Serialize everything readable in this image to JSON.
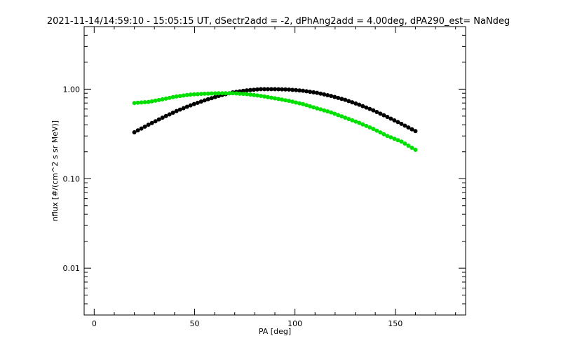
{
  "chart_data": {
    "type": "scatter",
    "title": "2021-11-14/14:59:10 - 15:05:15 UT, dSectr2add = -2, dPhAng2add = 4.00deg, dPA290_est=   NaNdeg",
    "xlabel": "PA [deg]",
    "ylabel": "nflux [#/(cm^2 s sr MeV)]",
    "xlim": [
      -5,
      185
    ],
    "ylim": [
      0.003,
      5
    ],
    "yscale": "log",
    "x_ticks": [
      0,
      50,
      100,
      150
    ],
    "x_tick_labels": [
      "0",
      "50",
      "100",
      "150"
    ],
    "y_ticks": [
      0.01,
      0.1,
      1.0
    ],
    "y_tick_labels": [
      "0.01",
      "0.10",
      "1.00"
    ],
    "grid": false,
    "series": [
      {
        "color": "#000000",
        "x": [
          20,
          27,
          34,
          41,
          48,
          55,
          62,
          69,
          76,
          83,
          90,
          97,
          104,
          111,
          118,
          125,
          132,
          139,
          146,
          153,
          160
        ],
        "y": [
          0.33,
          0.4,
          0.48,
          0.57,
          0.66,
          0.75,
          0.84,
          0.92,
          0.97,
          1.0,
          1.0,
          0.99,
          0.96,
          0.91,
          0.84,
          0.76,
          0.67,
          0.58,
          0.49,
          0.41,
          0.34
        ]
      },
      {
        "color": "#00e000",
        "x": [
          20,
          27,
          34,
          41,
          48,
          55,
          62,
          69,
          76,
          83,
          90,
          97,
          104,
          111,
          118,
          125,
          132,
          139,
          146,
          153,
          160
        ],
        "y": [
          0.7,
          0.72,
          0.77,
          0.83,
          0.87,
          0.89,
          0.9,
          0.9,
          0.88,
          0.84,
          0.79,
          0.74,
          0.68,
          0.61,
          0.55,
          0.48,
          0.42,
          0.36,
          0.3,
          0.26,
          0.21
        ]
      }
    ]
  }
}
